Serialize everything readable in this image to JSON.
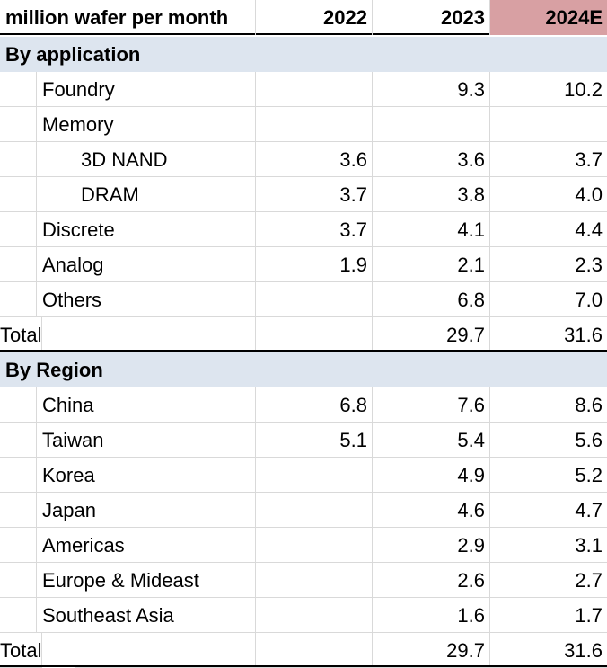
{
  "header": {
    "label": "million wafer per month",
    "years": [
      "2022",
      "2023",
      "2024E"
    ]
  },
  "sections": [
    {
      "title": "By application",
      "rows": [
        {
          "label": "Foundry",
          "indent": 1,
          "values": [
            "",
            "9.3",
            "10.2"
          ]
        },
        {
          "label": "Memory",
          "indent": 1,
          "values": [
            "",
            "",
            ""
          ]
        },
        {
          "label": "3D NAND",
          "indent": 2,
          "values": [
            "3.6",
            "3.6",
            "3.7"
          ]
        },
        {
          "label": "DRAM",
          "indent": 2,
          "values": [
            "3.7",
            "3.8",
            "4.0"
          ]
        },
        {
          "label": "Discrete",
          "indent": 1,
          "values": [
            "3.7",
            "4.1",
            "4.4"
          ]
        },
        {
          "label": "Analog",
          "indent": 1,
          "values": [
            "1.9",
            "2.1",
            "2.3"
          ]
        },
        {
          "label": "Others",
          "indent": 1,
          "values": [
            "",
            "6.8",
            "7.0"
          ]
        }
      ],
      "total": {
        "label": "Total",
        "values": [
          "",
          "29.7",
          "31.6"
        ]
      }
    },
    {
      "title": "By Region",
      "rows": [
        {
          "label": "China",
          "indent": 1,
          "values": [
            "6.8",
            "7.6",
            "8.6"
          ]
        },
        {
          "label": "Taiwan",
          "indent": 1,
          "values": [
            "5.1",
            "5.4",
            "5.6"
          ]
        },
        {
          "label": "Korea",
          "indent": 1,
          "values": [
            "",
            "4.9",
            "5.2"
          ]
        },
        {
          "label": "Japan",
          "indent": 1,
          "values": [
            "",
            "4.6",
            "4.7"
          ]
        },
        {
          "label": "Americas",
          "indent": 1,
          "values": [
            "",
            "2.9",
            "3.1"
          ]
        },
        {
          "label": "Europe & Mideast",
          "indent": 1,
          "values": [
            "",
            "2.6",
            "2.7"
          ]
        },
        {
          "label": "Southeast Asia",
          "indent": 1,
          "values": [
            "",
            "1.6",
            "1.7"
          ]
        }
      ],
      "total": {
        "label": "Total",
        "values": [
          "",
          "29.7",
          "31.6"
        ]
      }
    }
  ],
  "colors": {
    "highlight_header": "#d8a0a3",
    "section_band": "#dde5ef"
  }
}
